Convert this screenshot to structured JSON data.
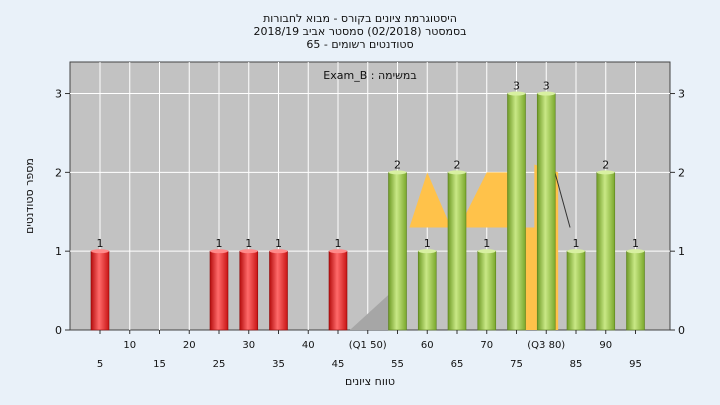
{
  "chart_data": {
    "type": "bar",
    "title_lines": [
      "היסטוגרמת ציונים בקורס - מבוא לחבורות",
      "בסמסטר  (02/2018)  סמסטר אביב 2018/19",
      "סטודנטים רשומים - 65"
    ],
    "legend_text": "Exam_B : במשימה",
    "ylabel": "מספר סטודנטים",
    "xlabel": "טווח ציונים",
    "ylim": [
      0,
      3.4
    ],
    "y_ticks": [
      0,
      1,
      2,
      3
    ],
    "x_ticks": [
      {
        "x": 5,
        "label": "5",
        "row": 1
      },
      {
        "x": 10,
        "label": "10",
        "row": 0
      },
      {
        "x": 15,
        "label": "15",
        "row": 1
      },
      {
        "x": 20,
        "label": "20",
        "row": 0
      },
      {
        "x": 25,
        "label": "25",
        "row": 1
      },
      {
        "x": 30,
        "label": "30",
        "row": 0
      },
      {
        "x": 35,
        "label": "35",
        "row": 1
      },
      {
        "x": 40,
        "label": "40",
        "row": 0
      },
      {
        "x": 45,
        "label": "45",
        "row": 1
      },
      {
        "x": 50,
        "label": "(Q1 50)",
        "row": 0
      },
      {
        "x": 55,
        "label": "55",
        "row": 1
      },
      {
        "x": 60,
        "label": "60",
        "row": 0
      },
      {
        "x": 65,
        "label": "65",
        "row": 1
      },
      {
        "x": 70,
        "label": "70",
        "row": 0
      },
      {
        "x": 75,
        "label": "75",
        "row": 1
      },
      {
        "x": 80,
        "label": "(Q3 80)",
        "row": 0
      },
      {
        "x": 85,
        "label": "85",
        "row": 1
      },
      {
        "x": 90,
        "label": "90",
        "row": 0
      },
      {
        "x": 95,
        "label": "95",
        "row": 1
      }
    ],
    "bars": [
      {
        "x": 5,
        "value": 1,
        "group": "red",
        "label": "1"
      },
      {
        "x": 25,
        "value": 1,
        "group": "red",
        "label": "1"
      },
      {
        "x": 30,
        "value": 1,
        "group": "red",
        "label": "1"
      },
      {
        "x": 35,
        "value": 1,
        "group": "red",
        "label": "1"
      },
      {
        "x": 45,
        "value": 1,
        "group": "red",
        "label": "1"
      },
      {
        "x": 55,
        "value": 2,
        "group": "green",
        "label": "2"
      },
      {
        "x": 60,
        "value": 1,
        "group": "green",
        "label": "1"
      },
      {
        "x": 65,
        "value": 2,
        "group": "green",
        "label": "2"
      },
      {
        "x": 70,
        "value": 1,
        "group": "green",
        "label": "1"
      },
      {
        "x": 75,
        "value": 3,
        "group": "green",
        "label": "3"
      },
      {
        "x": 80,
        "value": 3,
        "group": "green",
        "label": "3"
      },
      {
        "x": 85,
        "value": 1,
        "group": "green",
        "label": "1"
      },
      {
        "x": 90,
        "value": 2,
        "group": "green",
        "label": "2"
      },
      {
        "x": 95,
        "value": 1,
        "group": "green",
        "label": "1"
      }
    ],
    "grey_area": [
      [
        47,
        0
      ],
      [
        55,
        0.55
      ],
      [
        55,
        0
      ]
    ],
    "orange_area": [
      [
        57,
        1.3
      ],
      [
        60,
        2
      ],
      [
        64,
        1.3
      ],
      [
        64,
        1.1
      ],
      [
        70,
        2
      ],
      [
        74,
        2
      ],
      [
        74,
        0
      ],
      [
        82,
        0
      ],
      [
        82,
        2
      ],
      [
        78,
        2.1
      ],
      [
        78,
        1.3
      ],
      [
        76,
        1.3
      ],
      [
        60,
        1.3
      ]
    ],
    "trend_line": [
      [
        80,
        2.4
      ],
      [
        84,
        1.3
      ]
    ],
    "colors": {
      "background": "#e9f1f9",
      "plot_background": "#c2c2c2",
      "red": "#e02020",
      "green": "#8fbe3c",
      "orange": "#ffc24a",
      "grey_area": "#a6a6a6"
    }
  }
}
